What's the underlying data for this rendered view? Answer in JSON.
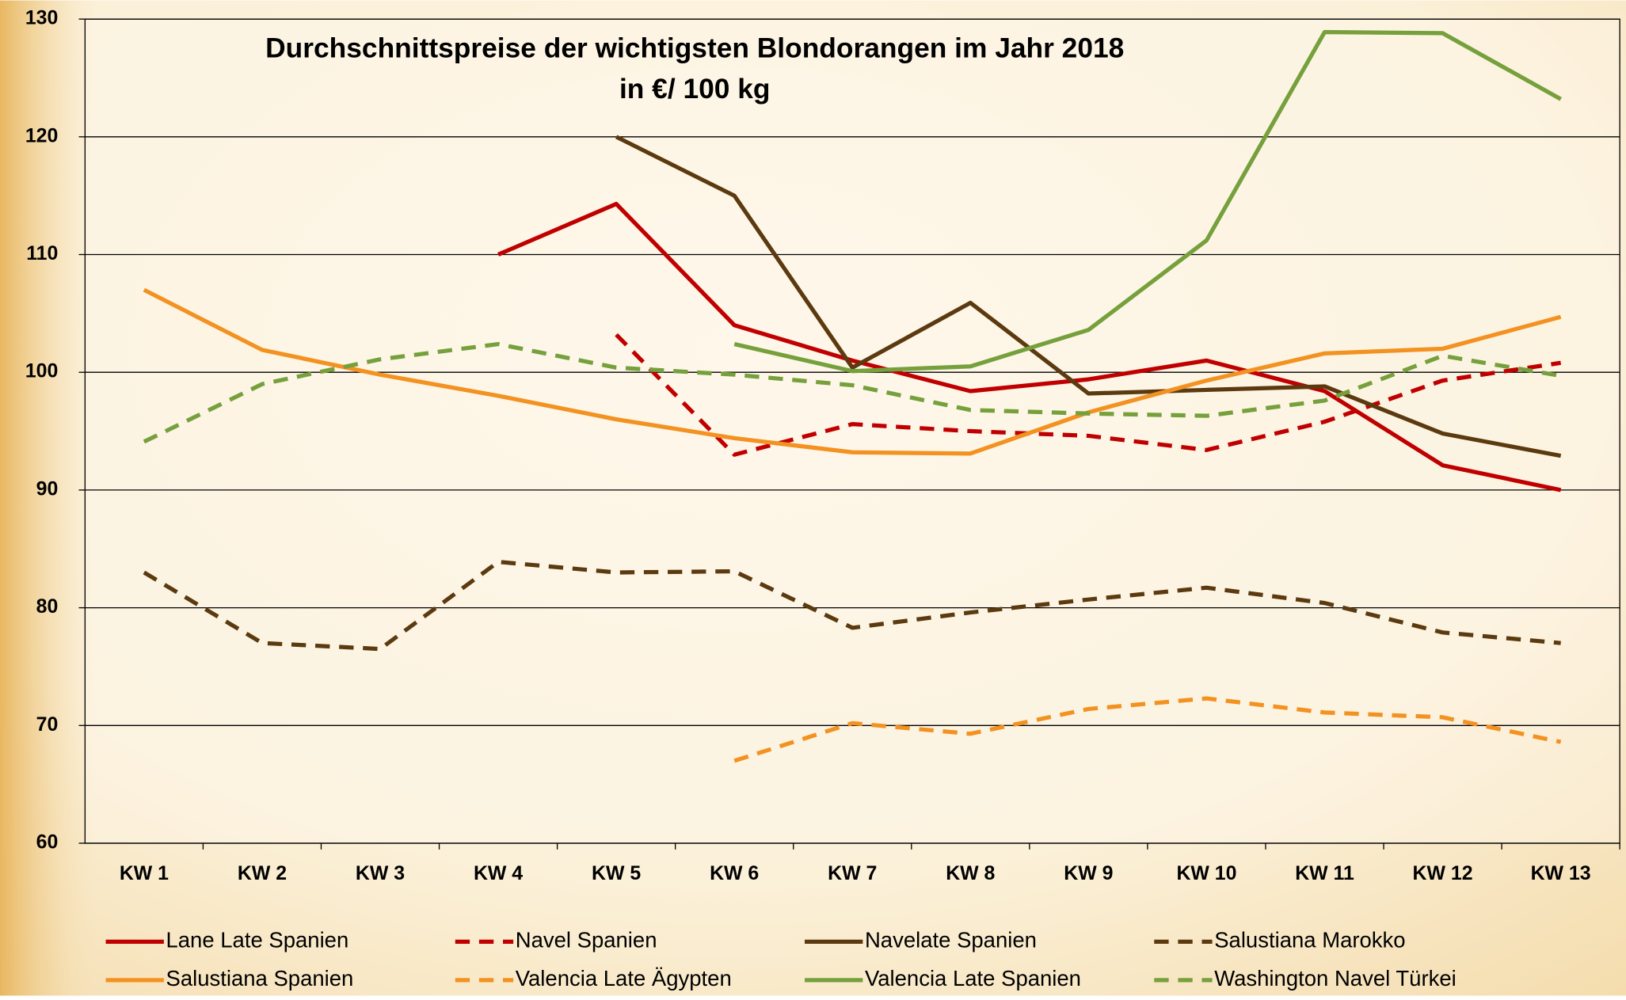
{
  "chart_data": {
    "type": "line",
    "title": "Durchschnittspreise der wichtigsten Blondorangen im Jahr 2018",
    "subtitle": "in €/ 100 kg",
    "categories": [
      "KW 1",
      "KW 2",
      "KW 3",
      "KW 4",
      "KW 5",
      "KW 6",
      "KW 7",
      "KW 8",
      "KW 9",
      "KW 10",
      "KW 11",
      "KW 12",
      "KW 13"
    ],
    "ylim": [
      60,
      130
    ],
    "yticks": [
      60,
      70,
      80,
      90,
      100,
      110,
      120,
      130
    ],
    "grid": true,
    "legend": "bottom",
    "series": [
      {
        "name": "Lane Late Spanien",
        "color": "#c00000",
        "dashed": false,
        "values": [
          null,
          null,
          null,
          110,
          114.3,
          104,
          101,
          98.4,
          99.4,
          101,
          98.4,
          92.1,
          90
        ]
      },
      {
        "name": "Navel Spanien",
        "color": "#c00000",
        "dashed": true,
        "values": [
          null,
          null,
          null,
          null,
          103.2,
          93,
          95.6,
          95,
          94.6,
          93.4,
          95.8,
          99.3,
          100.8
        ]
      },
      {
        "name": "Navelate Spanien",
        "color": "#5c3a10",
        "dashed": false,
        "values": [
          null,
          null,
          null,
          null,
          120,
          115,
          100.4,
          105.9,
          98.2,
          98.5,
          98.8,
          94.8,
          92.9
        ]
      },
      {
        "name": "Salustiana Marokko",
        "color": "#5c3a10",
        "dashed": true,
        "values": [
          83,
          77,
          76.5,
          83.9,
          83,
          83.1,
          78.3,
          79.6,
          80.7,
          81.7,
          80.4,
          77.9,
          77
        ]
      },
      {
        "name": "Salustiana Spanien",
        "color": "#f39121",
        "dashed": false,
        "values": [
          107,
          101.9,
          99.8,
          98,
          96,
          94.4,
          93.2,
          93.1,
          96.6,
          99.3,
          101.6,
          102,
          104.7
        ]
      },
      {
        "name": "Valencia Late Ägypten",
        "color": "#f39121",
        "dashed": true,
        "values": [
          null,
          null,
          null,
          null,
          null,
          67,
          70.2,
          69.3,
          71.4,
          72.3,
          71.1,
          70.7,
          68.6
        ]
      },
      {
        "name": "Valencia Late Spanien",
        "color": "#76a03c",
        "dashed": false,
        "values": [
          null,
          null,
          null,
          null,
          null,
          102.4,
          100.1,
          100.5,
          103.6,
          111.2,
          128.9,
          128.8,
          123.2
        ]
      },
      {
        "name": "Washington Navel Türkei",
        "color": "#76a03c",
        "dashed": true,
        "values": [
          94.1,
          99,
          101.1,
          102.4,
          100.4,
          99.8,
          98.9,
          96.8,
          96.5,
          96.3,
          97.6,
          101.4,
          99.7
        ]
      }
    ]
  }
}
